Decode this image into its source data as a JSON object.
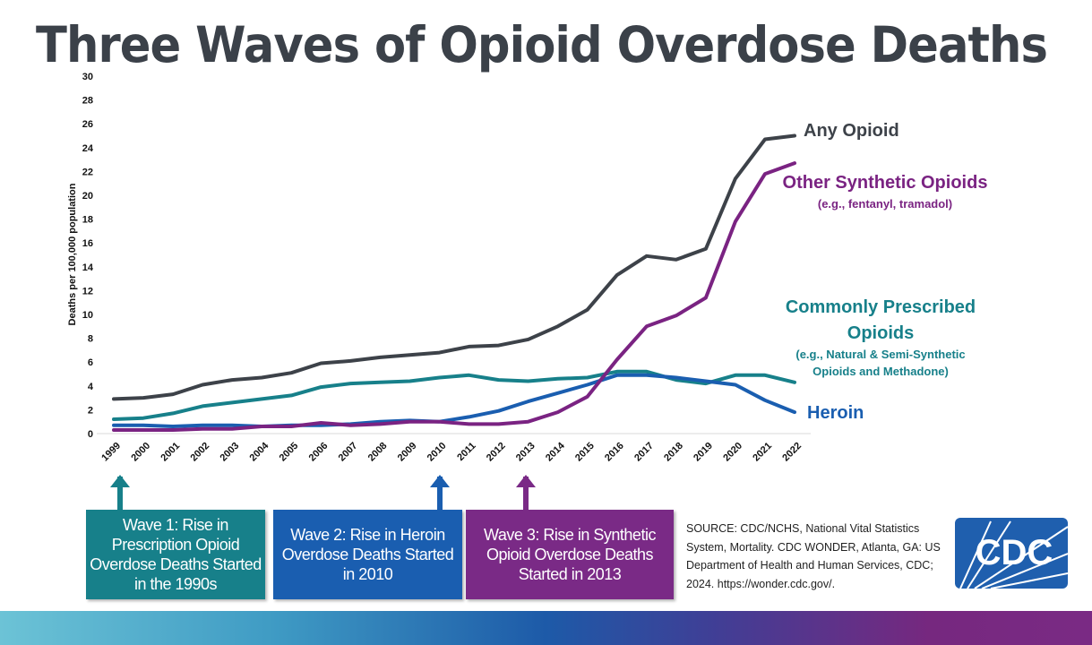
{
  "title": "Three Waves of Opioid Overdose Deaths",
  "chart_data": {
    "type": "line",
    "title": "Three Waves of Opioid Overdose Deaths",
    "xlabel": "",
    "ylabel": "Deaths per 100,000 population",
    "ylim": [
      0,
      30
    ],
    "yticks": [
      0,
      2,
      4,
      6,
      8,
      10,
      12,
      14,
      16,
      18,
      20,
      22,
      24,
      26,
      28,
      30
    ],
    "grid": false,
    "legend": "direct labels at right end of lines",
    "x": [
      "1999",
      "2000",
      "2001",
      "2002",
      "2003",
      "2004",
      "2005",
      "2006",
      "2007",
      "2008",
      "2009",
      "2010",
      "2011",
      "2012",
      "2013",
      "2014",
      "2015",
      "2016",
      "2017",
      "2018",
      "2019",
      "2020",
      "2021",
      "2022"
    ],
    "series": [
      {
        "name": "Any Opioid",
        "color": "#3d4249",
        "values": [
          2.9,
          3.0,
          3.3,
          4.1,
          4.5,
          4.7,
          5.1,
          5.9,
          6.1,
          6.4,
          6.6,
          6.8,
          7.3,
          7.4,
          7.9,
          9.0,
          10.4,
          13.3,
          14.9,
          14.6,
          15.5,
          21.4,
          24.7,
          25.0
        ]
      },
      {
        "name": "Other Synthetic Opioids",
        "note": "(e.g., fentanyl, tramadol)",
        "color": "#7a2382",
        "values": [
          0.3,
          0.3,
          0.3,
          0.4,
          0.4,
          0.6,
          0.6,
          0.9,
          0.7,
          0.8,
          1.0,
          1.0,
          0.8,
          0.8,
          1.0,
          1.8,
          3.1,
          6.2,
          9.0,
          9.9,
          11.4,
          17.8,
          21.8,
          22.7
        ]
      },
      {
        "name": "Commonly Prescribed Opioids",
        "note_lines": [
          "(e.g., Natural & Semi-Synthetic",
          "Opioids and Methadone)"
        ],
        "color": "#17808a",
        "values": [
          1.2,
          1.3,
          1.7,
          2.3,
          2.6,
          2.9,
          3.2,
          3.9,
          4.2,
          4.3,
          4.4,
          4.7,
          4.9,
          4.5,
          4.4,
          4.6,
          4.7,
          5.2,
          5.2,
          4.5,
          4.2,
          4.9,
          4.9,
          4.3
        ]
      },
      {
        "name": "Heroin",
        "color": "#1a5eb0",
        "values": [
          0.7,
          0.7,
          0.6,
          0.7,
          0.7,
          0.6,
          0.7,
          0.7,
          0.8,
          1.0,
          1.1,
          1.0,
          1.4,
          1.9,
          2.7,
          3.4,
          4.1,
          4.9,
          4.9,
          4.7,
          4.4,
          4.1,
          2.8,
          1.8
        ]
      }
    ],
    "label_lines": {
      "any": "Any Opioid",
      "synthetic": "Other Synthetic Opioids",
      "synthetic_note": "(e.g., fentanyl, tramadol)",
      "prescribed_1": "Commonly Prescribed",
      "prescribed_2": "Opioids",
      "prescribed_note_1": "(e.g., Natural & Semi-Synthetic",
      "prescribed_note_2": "Opioids and Methadone)",
      "heroin": "Heroin"
    }
  },
  "waves": [
    {
      "text": "Wave 1: Rise in Prescription Opioid Overdose Deaths Started in the 1990s",
      "year": "1999",
      "color": "#17808a"
    },
    {
      "text": "Wave 2: Rise in Heroin Overdose Deaths Started in 2010",
      "year": "2010",
      "color": "#1a5eb0"
    },
    {
      "text": "Wave 3: Rise in Synthetic Opioid Overdose Deaths Started in 2013",
      "year": "2013",
      "color": "#7a2a86"
    }
  ],
  "source": "SOURCE: CDC/NCHS, National Vital Statistics System, Mortality. CDC WONDER, Atlanta, GA: US Department of Health and Human Services, CDC; 2024. https://wonder.cdc.gov/.",
  "logo": {
    "text": "CDC",
    "color": "#1f5fae"
  }
}
